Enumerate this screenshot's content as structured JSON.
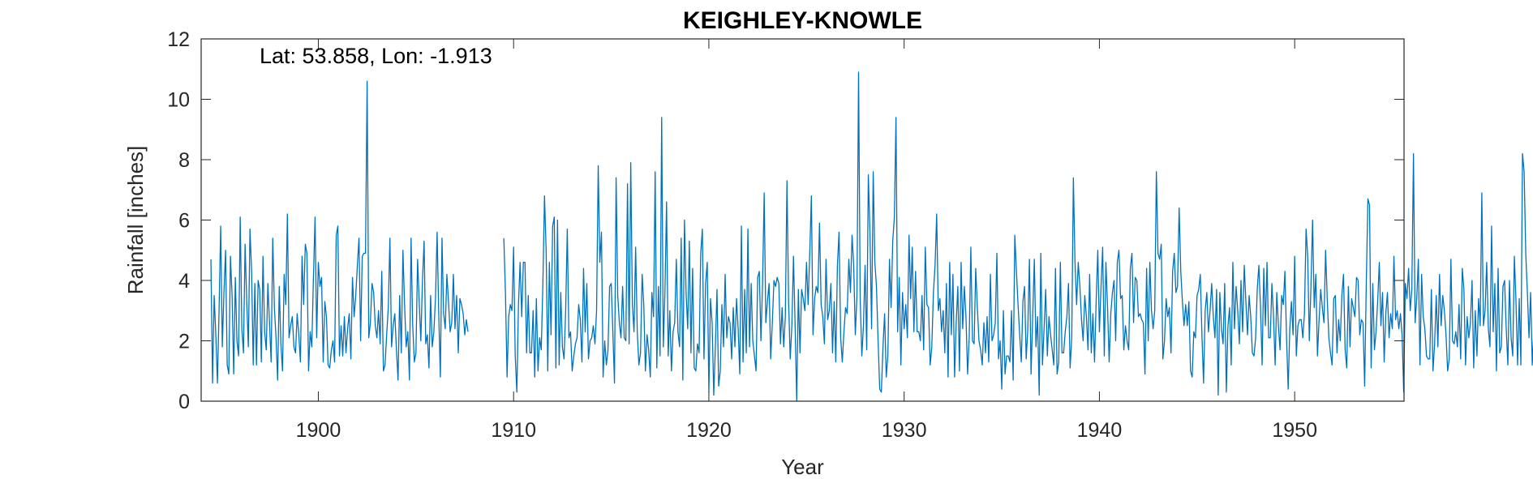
{
  "chart_data": {
    "type": "line",
    "title": "KEIGHLEY-KNOWLE",
    "annotation": "Lat: 53.858, Lon: -1.913",
    "xlabel": "Year",
    "ylabel": "Rainfall [inches]",
    "xlim": [
      1894.0,
      1955.6
    ],
    "ylim": [
      0,
      12
    ],
    "xticks": [
      1900,
      1910,
      1920,
      1930,
      1940,
      1950
    ],
    "yticks": [
      0,
      2,
      4,
      6,
      8,
      10,
      12
    ],
    "grid": false,
    "box": true,
    "line_color": "#0072BD",
    "series": [
      {
        "segments": [
          {
            "start_year": 1894.5,
            "values": [
              4.7,
              0.6,
              3.5,
              2.2,
              0.6,
              3.0,
              5.8,
              1.8,
              3.6,
              5.0,
              1.2,
              0.9,
              4.8,
              3.5,
              0.9,
              4.1,
              2.0,
              1.5,
              6.1,
              2.4,
              1.6,
              5.2,
              3.3,
              1.8,
              5.7,
              4.3,
              1.2,
              3.9,
              1.2,
              4.0,
              3.7,
              1.3,
              4.8,
              2.3,
              1.7,
              3.9,
              2.6,
              1.3,
              5.4,
              3.1,
              2.1,
              0.7,
              3.8,
              1.9,
              1.0,
              4.2,
              3.2,
              6.2,
              2.1,
              2.5,
              2.8,
              1.8,
              1.6,
              2.9,
              2.2,
              1.3,
              4.8,
              3.2,
              5.2,
              4.9,
              1.0,
              2.3,
              1.8,
              4.1,
              6.1,
              2.1,
              4.6,
              3.8,
              4.1,
              1.3,
              3.3,
              2.8,
              1.2,
              1.1,
              1.7,
              2.0,
              1.3,
              5.5,
              5.8,
              1.5,
              2.5,
              1.5,
              2.8,
              1.6,
              2.4,
              2.9,
              1.4,
              4.1,
              2.8,
              3.5,
              4.5,
              5.4,
              2.0,
              4.8,
              4.9,
              4.9,
              10.6,
              2.1,
              2.6,
              3.9,
              3.6,
              2.5,
              2.1,
              3.0,
              1.9,
              4.3,
              1.0,
              1.2,
              2.2,
              3.1,
              5.4,
              1.8,
              2.5,
              2.9,
              1.7,
              0.7,
              3.5,
              1.6,
              5.0,
              3.2,
              1.8,
              2.3,
              0.7,
              5.4,
              2.5,
              1.3,
              1.6,
              4.7,
              3.3,
              2.0,
              4.0,
              5.3,
              1.9,
              2.2,
              1.1,
              3.5,
              1.8,
              2.3,
              3.4,
              5.6,
              2.9,
              0.8,
              5.4,
              2.9,
              2.4,
              4.2,
              3.3,
              2.3,
              2.6,
              4.2,
              2.4,
              3.5,
              1.6,
              3.4,
              3.2,
              2.9,
              2.2,
              2.7,
              2.3
            ]
          },
          {
            "start_year": 1909.5,
            "values": [
              5.4,
              3.6,
              0.8,
              2.8,
              3.2,
              3.0,
              5.1,
              1.5,
              0.3,
              3.2,
              4.6,
              2.8,
              4.6,
              4.6,
              1.6,
              3.5,
              1.6,
              1.6,
              3.0,
              0.8,
              3.4,
              1.0,
              2.1,
              1.7,
              3.9,
              6.8,
              5.0,
              1.0,
              4.6,
              2.2,
              5.8,
              6.1,
              1.1,
              6.0,
              1.2,
              3.6,
              1.8,
              1.4,
              3.0,
              5.7,
              2.1,
              2.3,
              1.0,
              1.5,
              1.9,
              2.1,
              3.2,
              2.7,
              1.3,
              4.4,
              2.3,
              3.9,
              1.4,
              2.0,
              2.1,
              2.5,
              1.9,
              3.0,
              7.8,
              4.6,
              5.6,
              0.8,
              2.0,
              1.2,
              1.7,
              3.8,
              3.9,
              2.3,
              0.6,
              7.4,
              3.5,
              2.6,
              2.1,
              3.8,
              2.1,
              2.0,
              7.2,
              1.9,
              7.9,
              3.2,
              2.3,
              5.1,
              2.3,
              1.2,
              1.6,
              4.2,
              3.2,
              1.0,
              2.2,
              1.7,
              0.8,
              3.6,
              2.8,
              7.6,
              1.1,
              3.8,
              1.5,
              9.4,
              1.8,
              3.6,
              6.6,
              1.5,
              3.0,
              1.0,
              2.3,
              2.6,
              4.7,
              2.3,
              1.8,
              5.4,
              0.7,
              6.0,
              3.6,
              2.4,
              5.3,
              1.6,
              4.4,
              1.1,
              1.0,
              1.9,
              1.6,
              4.9,
              5.7,
              1.4,
              3.9,
              4.6,
              0.3,
              3.4,
              2.6,
              0.2,
              1.8,
              3.7,
              0.5,
              1.0,
              3.2,
              1.8,
              4.2,
              2.1,
              2.8,
              2.6,
              1.4,
              3.1,
              1.8,
              3.4,
              2.4,
              0.9,
              5.8,
              1.3,
              3.7,
              1.6,
              5.7,
              1.8,
              3.9,
              2.0,
              1.5,
              1.0,
              4.1,
              4.3,
              2.0,
              3.9,
              6.9,
              2.6,
              3.3,
              3.9,
              1.4,
              2.6,
              4.0,
              3.8,
              4.1,
              3.9,
              1.9,
              3.1,
              1.8,
              2.8,
              7.3,
              3.3,
              1.4,
              2.5,
              4.8,
              2.5,
              0.0,
              3.7,
              1.6,
              3.7,
              3.4,
              3.0,
              4.6,
              3.2,
              4.9,
              6.8,
              2.2,
              3.4,
              3.8,
              3.6,
              5.9,
              3.2,
              2.8,
              1.9,
              4.7,
              2.7,
              3.0,
              3.9,
              1.6,
              3.3,
              1.3,
              4.5,
              5.6,
              2.1,
              1.3,
              2.3,
              3.1,
              2.9,
              4.7,
              3.6,
              5.5,
              4.5,
              2.2,
              3.5,
              10.9,
              3.4,
              1.5,
              2.5,
              4.5,
              1.7,
              7.5,
              5.6,
              2.4,
              7.6,
              4.6,
              3.8,
              2.0,
              0.4,
              0.3,
              1.8,
              2.9,
              0.8,
              1.5,
              4.7,
              3.1,
              5.3,
              6.1,
              9.4,
              2.3,
              4.1,
              1.2,
              3.6,
              2.4,
              3.2,
              2.1,
              5.5,
              3.4,
              5.1,
              2.3,
              4.3,
              2.3,
              2.3,
              2.0,
              3.5,
              1.7,
              5.1,
              3.2,
              3.1,
              1.2,
              1.8,
              3.6,
              4.5,
              6.2,
              3.0,
              3.4,
              2.3,
              3.0,
              1.6,
              3.9,
              0.8,
              4.6,
              2.2,
              4.2,
              0.8,
              2.6,
              3.8,
              1.0,
              4.6,
              2.4,
              3.8,
              2.8,
              0.9,
              2.1,
              5.1,
              2.0,
              1.9,
              4.4,
              3.1,
              2.0,
              1.7,
              1.2,
              2.6,
              1.6,
              2.8,
              1.3,
              4.2,
              2.0,
              2.2,
              2.6,
              4.9,
              1.4,
              2.0,
              0.4,
              3.0,
              0.9,
              1.5,
              1.5,
              1.3,
              3.0,
              0.7,
              5.5,
              4.3,
              3.2,
              2.2,
              1.3,
              3.3,
              3.8,
              1.4,
              2.4,
              4.7,
              0.9,
              2.8,
              4.7,
              1.8,
              2.8,
              0.2,
              4.9,
              1.2,
              2.4,
              3.7,
              1.5,
              2.8,
              2.2,
              1.7,
              1.2,
              4.4,
              0.9,
              1.3,
              4.6,
              1.6,
              1.6,
              2.3,
              2.8,
              3.9,
              1.1,
              2.1,
              7.4,
              4.6,
              3.2,
              4.6,
              3.8,
              2.7,
              2.0,
              3.5,
              2.8,
              1.7,
              4.2,
              1.6,
              2.9,
              1.3,
              3.3,
              5.0,
              2.3,
              3.8,
              5.1,
              1.5,
              4.6,
              3.1,
              1.3,
              2.9,
              3.6,
              4.0,
              2.0,
              4.6,
              5.0,
              3.4,
              3.5,
              1.7,
              2.5,
              2.0,
              1.7,
              4.4,
              4.9,
              2.6,
              4.1,
              4.0,
              2.8,
              2.9,
              2.7,
              2.6,
              0.9,
              4.4,
              2.0,
              4.6,
              3.0,
              2.4,
              3.0,
              7.6,
              4.9,
              4.7,
              5.2,
              1.4,
              2.0,
              3.4,
              2.8,
              3.1,
              1.6,
              4.3,
              4.9,
              3.6,
              3.8,
              6.4,
              4.3,
              3.3,
              2.5,
              3.2,
              2.5,
              3.3,
              1.0,
              0.8,
              2.3,
              2.1,
              3.5,
              3.7,
              4.2,
              2.2,
              0.6,
              3.0,
              3.6,
              2.3,
              3.0,
              3.9,
              2.8,
              2.1,
              3.7,
              0.2,
              3.6,
              2.4,
              1.9,
              3.9,
              0.3,
              2.5,
              3.1,
              1.2,
              4.6,
              2.4,
              3.8,
              3.0,
              1.9,
              4.0,
              2.3,
              4.5,
              3.3,
              2.2,
              3.5,
              2.8,
              1.6,
              1.5,
              2.1,
              3.7,
              4.5,
              3.1,
              1.2,
              4.4,
              2.5,
              4.6,
              2.1,
              2.1,
              3.9,
              2.8,
              1.2,
              3.6,
              2.5,
              1.7,
              3.5,
              3.2,
              4.3,
              2.1,
              0.4,
              2.4,
              3.3,
              2.2,
              4.8,
              1.5,
              2.5,
              2.7,
              2.7,
              2.1,
              2.9,
              5.7,
              4.8,
              2.0,
              3.8,
              6.0,
              3.1,
              4.2,
              1.5,
              2.7,
              3.7,
              3.1,
              2.6,
              5.0,
              3.4,
              2.1,
              1.6,
              1.2,
              3.4,
              3.5,
              1.6,
              2.7,
              2.0,
              3.5,
              4.2,
              1.7,
              1.1,
              3.8,
              1.8,
              3.4,
              3.1,
              2.8,
              4.1,
              4.0,
              2.2,
              2.7,
              2.6,
              0.5,
              3.9,
              6.7,
              6.5,
              1.1,
              3.9,
              1.7,
              2.3,
              3.3,
              4.6,
              2.5,
              3.6,
              1.3,
              2.9,
              3.6,
              2.1,
              2.9,
              2.4,
              4.8,
              2.7,
              3.0,
              2.4,
              2.9,
              2.2,
              0.3,
              3.9,
              3.4,
              4.4,
              3.0,
              3.7,
              8.2,
              2.6,
              3.4,
              4.7,
              1.2,
              4.2,
              2.8,
              2.4,
              1.5,
              1.4,
              1.4,
              3.7,
              1.0,
              1.9,
              3.5,
              1.8,
              4.2,
              2.5,
              3.5,
              3.0,
              2.2,
              1.0,
              1.4,
              4.7,
              2.0,
              1.9,
              2.3,
              1.8,
              3.2,
              1.4,
              4.4,
              3.7,
              1.2,
              2.8,
              2.1,
              2.6,
              4.0,
              1.1,
              3.0,
              1.5,
              3.4,
              2.5,
              6.9,
              2.5,
              3.0,
              4.6,
              2.4,
              1.8,
              5.8,
              2.3,
              3.9,
              1.0,
              4.4,
              1.6,
              1.8,
              3.8,
              4.0,
              2.4,
              1.2,
              4.0,
              2.1,
              1.5,
              4.8,
              3.3,
              1.2,
              3.4,
              1.2,
              8.2,
              7.6,
              4.9,
              3.6,
              2.1,
              3.6,
              1.2,
              2.4,
              4.0,
              3.3,
              1.2,
              3.5,
              1.9,
              1.0,
              3.8,
              3.0,
              3.9,
              0.6,
              1.7,
              3.6,
              1.3,
              4.9,
              1.6,
              1.5,
              4.1,
              2.1,
              1.3,
              2.8,
              4.5,
              2.1,
              1.5,
              1.9,
              5.0,
              4.3,
              2.2,
              3.8,
              2.6,
              3.2,
              1.4,
              3.8,
              3.0,
              1.9,
              0.5,
              3.9,
              7.1,
              4.0,
              6.0,
              6.2,
              5.4,
              4.0,
              1.3,
              2.0,
              2.3,
              1.8,
              1.8,
              1.3,
              1.0,
              2.9,
              1.1,
              2.4,
              0.7,
              1.5,
              1.3,
              2.5,
              1.9,
              3.6,
              4.3
            ]
          }
        ]
      }
    ]
  }
}
